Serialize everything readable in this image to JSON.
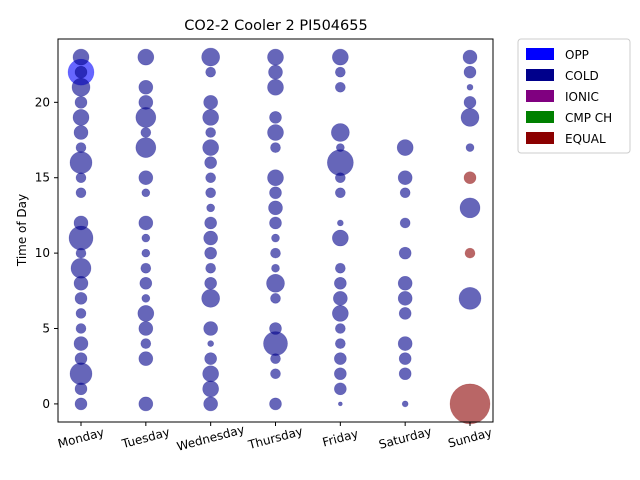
{
  "chart_data": {
    "type": "scatter",
    "title": "CO2-2 Cooler 2 PI504655",
    "xlabel": "",
    "ylabel": "Time of Day",
    "categories": [
      "Monday",
      "Tuesday",
      "Wednesday",
      "Thursday",
      "Friday",
      "Saturday",
      "Sunday"
    ],
    "ylim": [
      -1.2,
      24.2
    ],
    "yticks": [
      0,
      5,
      10,
      15,
      20
    ],
    "x_tick_rotation": 15,
    "grid": false,
    "legend_position": "outside-top-right",
    "legend": [
      {
        "label": "OPP",
        "color": "#0000ff"
      },
      {
        "label": "COLD",
        "color": "#00008b"
      },
      {
        "label": "IONIC",
        "color": "#800080"
      },
      {
        "label": "CMP CH",
        "color": "#008000"
      },
      {
        "label": "EQUAL",
        "color": "#8b0000"
      }
    ],
    "series": [
      {
        "name": "OPP",
        "color": "#0000ff",
        "points": [
          {
            "x": "Monday",
            "y": 22,
            "size": 13
          }
        ]
      },
      {
        "name": "COLD",
        "color": "#00008b",
        "points": [
          {
            "x": "Monday",
            "y": 23,
            "size": 8
          },
          {
            "x": "Monday",
            "y": 22,
            "size": 6
          },
          {
            "x": "Monday",
            "y": 21,
            "size": 9
          },
          {
            "x": "Monday",
            "y": 20,
            "size": 6
          },
          {
            "x": "Monday",
            "y": 19,
            "size": 8
          },
          {
            "x": "Monday",
            "y": 18,
            "size": 7
          },
          {
            "x": "Monday",
            "y": 17,
            "size": 5
          },
          {
            "x": "Monday",
            "y": 16,
            "size": 11
          },
          {
            "x": "Monday",
            "y": 15,
            "size": 5
          },
          {
            "x": "Monday",
            "y": 14,
            "size": 5
          },
          {
            "x": "Monday",
            "y": 12,
            "size": 7
          },
          {
            "x": "Monday",
            "y": 11,
            "size": 12
          },
          {
            "x": "Monday",
            "y": 10,
            "size": 5
          },
          {
            "x": "Monday",
            "y": 9,
            "size": 10
          },
          {
            "x": "Monday",
            "y": 8,
            "size": 7
          },
          {
            "x": "Monday",
            "y": 7,
            "size": 6
          },
          {
            "x": "Monday",
            "y": 6,
            "size": 5
          },
          {
            "x": "Monday",
            "y": 5,
            "size": 5
          },
          {
            "x": "Monday",
            "y": 4,
            "size": 7
          },
          {
            "x": "Monday",
            "y": 3,
            "size": 6
          },
          {
            "x": "Monday",
            "y": 2,
            "size": 11
          },
          {
            "x": "Monday",
            "y": 1,
            "size": 6
          },
          {
            "x": "Monday",
            "y": 0,
            "size": 6
          },
          {
            "x": "Tuesday",
            "y": 23,
            "size": 8
          },
          {
            "x": "Tuesday",
            "y": 21,
            "size": 7
          },
          {
            "x": "Tuesday",
            "y": 20,
            "size": 7
          },
          {
            "x": "Tuesday",
            "y": 19,
            "size": 10
          },
          {
            "x": "Tuesday",
            "y": 18,
            "size": 5
          },
          {
            "x": "Tuesday",
            "y": 17,
            "size": 10
          },
          {
            "x": "Tuesday",
            "y": 15,
            "size": 7
          },
          {
            "x": "Tuesday",
            "y": 14,
            "size": 4
          },
          {
            "x": "Tuesday",
            "y": 12,
            "size": 7
          },
          {
            "x": "Tuesday",
            "y": 11,
            "size": 4
          },
          {
            "x": "Tuesday",
            "y": 10,
            "size": 4
          },
          {
            "x": "Tuesday",
            "y": 9,
            "size": 5
          },
          {
            "x": "Tuesday",
            "y": 8,
            "size": 6
          },
          {
            "x": "Tuesday",
            "y": 7,
            "size": 4
          },
          {
            "x": "Tuesday",
            "y": 6,
            "size": 8
          },
          {
            "x": "Tuesday",
            "y": 5,
            "size": 7
          },
          {
            "x": "Tuesday",
            "y": 4,
            "size": 5
          },
          {
            "x": "Tuesday",
            "y": 3,
            "size": 7
          },
          {
            "x": "Tuesday",
            "y": 0,
            "size": 7
          },
          {
            "x": "Wednesday",
            "y": 23,
            "size": 9
          },
          {
            "x": "Wednesday",
            "y": 22,
            "size": 5
          },
          {
            "x": "Wednesday",
            "y": 20,
            "size": 7
          },
          {
            "x": "Wednesday",
            "y": 19,
            "size": 8
          },
          {
            "x": "Wednesday",
            "y": 18,
            "size": 5
          },
          {
            "x": "Wednesday",
            "y": 17,
            "size": 8
          },
          {
            "x": "Wednesday",
            "y": 16,
            "size": 6
          },
          {
            "x": "Wednesday",
            "y": 15,
            "size": 5
          },
          {
            "x": "Wednesday",
            "y": 14,
            "size": 5
          },
          {
            "x": "Wednesday",
            "y": 13,
            "size": 4
          },
          {
            "x": "Wednesday",
            "y": 12,
            "size": 6
          },
          {
            "x": "Wednesday",
            "y": 11,
            "size": 7
          },
          {
            "x": "Wednesday",
            "y": 10,
            "size": 6
          },
          {
            "x": "Wednesday",
            "y": 9,
            "size": 5
          },
          {
            "x": "Wednesday",
            "y": 8,
            "size": 6
          },
          {
            "x": "Wednesday",
            "y": 7,
            "size": 9
          },
          {
            "x": "Wednesday",
            "y": 5,
            "size": 7
          },
          {
            "x": "Wednesday",
            "y": 4,
            "size": 3
          },
          {
            "x": "Wednesday",
            "y": 3,
            "size": 6
          },
          {
            "x": "Wednesday",
            "y": 2,
            "size": 8
          },
          {
            "x": "Wednesday",
            "y": 1,
            "size": 8
          },
          {
            "x": "Wednesday",
            "y": 0,
            "size": 7
          },
          {
            "x": "Thursday",
            "y": 23,
            "size": 8
          },
          {
            "x": "Thursday",
            "y": 22,
            "size": 7
          },
          {
            "x": "Thursday",
            "y": 21,
            "size": 8
          },
          {
            "x": "Thursday",
            "y": 19,
            "size": 6
          },
          {
            "x": "Thursday",
            "y": 18,
            "size": 8
          },
          {
            "x": "Thursday",
            "y": 17,
            "size": 5
          },
          {
            "x": "Thursday",
            "y": 15,
            "size": 8
          },
          {
            "x": "Thursday",
            "y": 14,
            "size": 6
          },
          {
            "x": "Thursday",
            "y": 13,
            "size": 7
          },
          {
            "x": "Thursday",
            "y": 12,
            "size": 6
          },
          {
            "x": "Thursday",
            "y": 11,
            "size": 4
          },
          {
            "x": "Thursday",
            "y": 10,
            "size": 5
          },
          {
            "x": "Thursday",
            "y": 9,
            "size": 4
          },
          {
            "x": "Thursday",
            "y": 8,
            "size": 9
          },
          {
            "x": "Thursday",
            "y": 7,
            "size": 5
          },
          {
            "x": "Thursday",
            "y": 5,
            "size": 6
          },
          {
            "x": "Thursday",
            "y": 4,
            "size": 12
          },
          {
            "x": "Thursday",
            "y": 3,
            "size": 5
          },
          {
            "x": "Thursday",
            "y": 2,
            "size": 5
          },
          {
            "x": "Thursday",
            "y": 0,
            "size": 6
          },
          {
            "x": "Friday",
            "y": 23,
            "size": 8
          },
          {
            "x": "Friday",
            "y": 22,
            "size": 5
          },
          {
            "x": "Friday",
            "y": 21,
            "size": 5
          },
          {
            "x": "Friday",
            "y": 18,
            "size": 9
          },
          {
            "x": "Friday",
            "y": 17,
            "size": 4
          },
          {
            "x": "Friday",
            "y": 16,
            "size": 13
          },
          {
            "x": "Friday",
            "y": 15,
            "size": 5
          },
          {
            "x": "Friday",
            "y": 14,
            "size": 5
          },
          {
            "x": "Friday",
            "y": 12,
            "size": 3
          },
          {
            "x": "Friday",
            "y": 11,
            "size": 8
          },
          {
            "x": "Friday",
            "y": 9,
            "size": 5
          },
          {
            "x": "Friday",
            "y": 8,
            "size": 6
          },
          {
            "x": "Friday",
            "y": 7,
            "size": 7
          },
          {
            "x": "Friday",
            "y": 6,
            "size": 8
          },
          {
            "x": "Friday",
            "y": 5,
            "size": 5
          },
          {
            "x": "Friday",
            "y": 4,
            "size": 5
          },
          {
            "x": "Friday",
            "y": 3,
            "size": 6
          },
          {
            "x": "Friday",
            "y": 2,
            "size": 6
          },
          {
            "x": "Friday",
            "y": 1,
            "size": 6
          },
          {
            "x": "Friday",
            "y": 0,
            "size": 2
          },
          {
            "x": "Saturday",
            "y": 17,
            "size": 8
          },
          {
            "x": "Saturday",
            "y": 15,
            "size": 7
          },
          {
            "x": "Saturday",
            "y": 14,
            "size": 5
          },
          {
            "x": "Saturday",
            "y": 12,
            "size": 5
          },
          {
            "x": "Saturday",
            "y": 10,
            "size": 6
          },
          {
            "x": "Saturday",
            "y": 8,
            "size": 7
          },
          {
            "x": "Saturday",
            "y": 7,
            "size": 7
          },
          {
            "x": "Saturday",
            "y": 6,
            "size": 6
          },
          {
            "x": "Saturday",
            "y": 4,
            "size": 7
          },
          {
            "x": "Saturday",
            "y": 3,
            "size": 6
          },
          {
            "x": "Saturday",
            "y": 2,
            "size": 6
          },
          {
            "x": "Saturday",
            "y": 0,
            "size": 3
          },
          {
            "x": "Sunday",
            "y": 23,
            "size": 7
          },
          {
            "x": "Sunday",
            "y": 22,
            "size": 6
          },
          {
            "x": "Sunday",
            "y": 21,
            "size": 3
          },
          {
            "x": "Sunday",
            "y": 20,
            "size": 6
          },
          {
            "x": "Sunday",
            "y": 19,
            "size": 9
          },
          {
            "x": "Sunday",
            "y": 17,
            "size": 4
          },
          {
            "x": "Sunday",
            "y": 13,
            "size": 10
          },
          {
            "x": "Sunday",
            "y": 7,
            "size": 11
          }
        ]
      },
      {
        "name": "EQUAL",
        "color": "#8b0000",
        "points": [
          {
            "x": "Sunday",
            "y": 15,
            "size": 6
          },
          {
            "x": "Sunday",
            "y": 10,
            "size": 5
          },
          {
            "x": "Sunday",
            "y": 0,
            "size": 20
          }
        ]
      }
    ]
  }
}
